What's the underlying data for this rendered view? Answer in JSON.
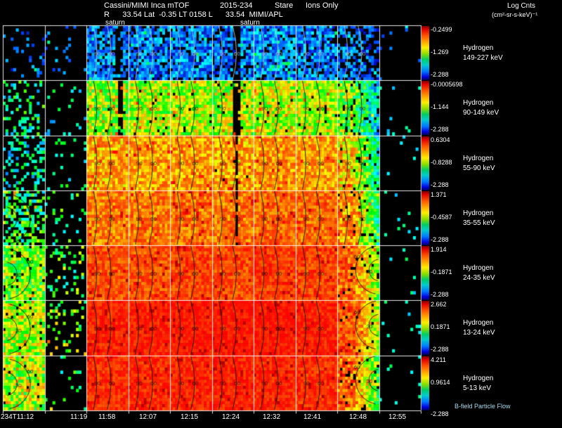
{
  "header": {
    "instrument": "Cassini/MIMI Inca mTOF",
    "date": "2015-234",
    "mode": "Stare",
    "species_filter": "Ions Only",
    "line2": "R      33.54 Lat  -0.35 LT 0158 L      33.54  MIMI/APL",
    "log_label": "Log Cnts",
    "log_units": "(cm²-sr-s-keV)⁻¹"
  },
  "saturn_marker": "saturn",
  "footer_note": "B-field Particle Flow",
  "chart_data": {
    "type": "heatmap",
    "title": "Cassini/MIMI Inca mTOF 2015-234 Stare Ions Only",
    "colorbar_units": "Log Cnts (cm²-sr-s-keV)⁻¹",
    "time_axis": {
      "labels": [
        "234T11:12",
        "11:19",
        "11:58",
        "12:07",
        "12:15",
        "12:24",
        "12:32",
        "12:41",
        "12:48",
        "12:55"
      ]
    },
    "contour_sets": {
      "ctr": [
        "90",
        "60"
      ],
      "lft": [
        "30",
        "60"
      ],
      "rgt": [
        "30",
        "60"
      ]
    },
    "rows": [
      {
        "species": "Hydrogen",
        "energy": "149-227 keV",
        "cbar": {
          "top": "-0.2499",
          "mid": "-1.269",
          "bot": "-2.288"
        },
        "cells": [
          {
            "c": 0.12,
            "v": 0.12,
            "s": 0.1
          },
          {
            "c": 0.05,
            "v": 0.12,
            "s": 0.08
          },
          {
            "c": 0.8,
            "v": 0.14,
            "s": 0.13,
            "b": [
              0.8,
              0.18
            ],
            "k": "ctr"
          },
          {
            "c": 0.8,
            "v": 0.14,
            "s": 0.13,
            "k": "ctr"
          },
          {
            "c": 0.82,
            "v": 0.15,
            "s": 0.13,
            "k": "ctr"
          },
          {
            "c": 0.8,
            "v": 0.14,
            "s": 0.13,
            "b": [
              0.58,
              0.16
            ],
            "k": "ctr"
          },
          {
            "c": 0.85,
            "v": 0.16,
            "s": 0.14,
            "k": "ctr"
          },
          {
            "c": 0.8,
            "v": 0.14,
            "s": 0.13,
            "k": "ctr"
          },
          {
            "c": 0.55,
            "v": 0.13,
            "s": 0.12,
            "vr": 0.08,
            "k": "ctr"
          },
          {
            "c": 0.02,
            "v": 0.1,
            "s": 0.05
          }
        ]
      },
      {
        "species": "Hydrogen",
        "energy": "90-149 keV",
        "cbar": {
          "top": "-0.0005698",
          "mid": "-1.144",
          "bot": "-2.288"
        },
        "cells": [
          {
            "c": 0.25,
            "v": 0.35,
            "s": 0.18
          },
          {
            "c": 0.06,
            "v": 0.3,
            "s": 0.15
          },
          {
            "c": 0.97,
            "v": 0.52,
            "s": 0.16,
            "b": [
              0.8,
              0.12
            ],
            "k": "ctr"
          },
          {
            "c": 0.97,
            "v": 0.55,
            "s": 0.15,
            "k": "ctr"
          },
          {
            "c": 0.97,
            "v": 0.56,
            "s": 0.15,
            "k": "ctr"
          },
          {
            "c": 0.95,
            "v": 0.55,
            "s": 0.16,
            "b": [
              0.6,
              0.15
            ],
            "k": "ctr"
          },
          {
            "c": 0.97,
            "v": 0.57,
            "s": 0.15,
            "k": "ctr"
          },
          {
            "c": 0.97,
            "v": 0.55,
            "s": 0.15,
            "k": "ctr"
          },
          {
            "c": 0.88,
            "v": 0.5,
            "s": 0.18,
            "vr": 0.25,
            "k": "ctr"
          },
          {
            "c": 0.02,
            "v": 0.3,
            "s": 0.1
          }
        ]
      },
      {
        "species": "Hydrogen",
        "energy": "55-90 keV",
        "cbar": {
          "top": "0.6304",
          "mid": "-0.8288",
          "bot": "-2.288"
        },
        "cells": [
          {
            "c": 0.3,
            "v": 0.3,
            "s": 0.16
          },
          {
            "c": 0.08,
            "v": 0.35,
            "s": 0.15
          },
          {
            "c": 1,
            "v": 0.68,
            "s": 0.12,
            "k": "ctr"
          },
          {
            "c": 1,
            "v": 0.7,
            "s": 0.11,
            "k": "ctr"
          },
          {
            "c": 1,
            "v": 0.7,
            "s": 0.11,
            "k": "ctr"
          },
          {
            "c": 0.98,
            "v": 0.69,
            "s": 0.12,
            "b": [
              0.6,
              0.1
            ],
            "k": "ctr"
          },
          {
            "c": 1,
            "v": 0.71,
            "s": 0.11,
            "k": "ctr"
          },
          {
            "c": 1,
            "v": 0.7,
            "s": 0.11,
            "k": "ctr"
          },
          {
            "c": 0.92,
            "v": 0.66,
            "s": 0.15,
            "vr": 0.3,
            "k": "ctr"
          },
          {
            "c": 0.02,
            "v": 0.3,
            "s": 0.1
          }
        ]
      },
      {
        "species": "Hydrogen",
        "energy": "35-55 keV",
        "cbar": {
          "top": "1.371",
          "mid": "-0.4587",
          "bot": "-2.288"
        },
        "cells": [
          {
            "c": 0.45,
            "v": 0.4,
            "s": 0.2,
            "k": "lft"
          },
          {
            "c": 0.1,
            "v": 0.4,
            "s": 0.15
          },
          {
            "c": 1,
            "v": 0.74,
            "s": 0.1,
            "k": "ctr"
          },
          {
            "c": 1,
            "v": 0.75,
            "s": 0.1,
            "k": "ctr"
          },
          {
            "c": 1,
            "v": 0.76,
            "s": 0.1,
            "k": "ctr"
          },
          {
            "c": 1,
            "v": 0.75,
            "s": 0.1,
            "b": [
              0.6,
              0.08
            ],
            "k": "ctr"
          },
          {
            "c": 1,
            "v": 0.77,
            "s": 0.09,
            "k": "ctr"
          },
          {
            "c": 1,
            "v": 0.76,
            "s": 0.09,
            "k": "ctr"
          },
          {
            "c": 0.95,
            "v": 0.72,
            "s": 0.14,
            "vr": 0.35,
            "k": "ctr"
          },
          {
            "c": 0.02,
            "v": 0.3,
            "s": 0.1
          }
        ]
      },
      {
        "species": "Hydrogen",
        "energy": "24-35 keV",
        "cbar": {
          "top": "1.914",
          "mid": "-0.1871",
          "bot": "-2.288"
        },
        "cells": [
          {
            "c": 0.92,
            "v": 0.5,
            "s": 0.16,
            "k": "lft"
          },
          {
            "c": 0.15,
            "v": 0.45,
            "s": 0.18
          },
          {
            "c": 1,
            "v": 0.8,
            "s": 0.08,
            "k": "ctr"
          },
          {
            "c": 1,
            "v": 0.8,
            "s": 0.08,
            "k": "ctr"
          },
          {
            "c": 1,
            "v": 0.82,
            "s": 0.08,
            "k": "ctr"
          },
          {
            "c": 1,
            "v": 0.81,
            "s": 0.08,
            "k": "ctr"
          },
          {
            "c": 1,
            "v": 0.83,
            "s": 0.07,
            "k": "ctr"
          },
          {
            "c": 1,
            "v": 0.82,
            "s": 0.08,
            "k": "ctr"
          },
          {
            "c": 0.95,
            "v": 0.78,
            "s": 0.12,
            "vr": 0.5,
            "k": "rgt"
          },
          {
            "c": 0.02,
            "v": 0.3,
            "s": 0.1
          }
        ]
      },
      {
        "species": "Hydrogen",
        "energy": "13-24 keV",
        "cbar": {
          "top": "2.662",
          "mid": "0.1871",
          "bot": "-2.288"
        },
        "cells": [
          {
            "c": 0.95,
            "v": 0.55,
            "s": 0.15,
            "k": "lft"
          },
          {
            "c": 0.12,
            "v": 0.5,
            "s": 0.18
          },
          {
            "c": 1,
            "v": 0.86,
            "s": 0.06,
            "k": "ctr"
          },
          {
            "c": 1,
            "v": 0.87,
            "s": 0.06,
            "k": "ctr"
          },
          {
            "c": 1,
            "v": 0.88,
            "s": 0.05,
            "k": "ctr"
          },
          {
            "c": 1,
            "v": 0.88,
            "s": 0.05,
            "k": "ctr"
          },
          {
            "c": 1,
            "v": 0.88,
            "s": 0.05,
            "k": "ctr"
          },
          {
            "c": 1,
            "v": 0.87,
            "s": 0.06,
            "k": "ctr"
          },
          {
            "c": 0.95,
            "v": 0.8,
            "s": 0.1,
            "vr": 0.55,
            "k": "rgt"
          },
          {
            "c": 0.02,
            "v": 0.3,
            "s": 0.1
          }
        ]
      },
      {
        "species": "Hydrogen",
        "energy": "5-13 keV",
        "cbar": {
          "top": "4.211",
          "mid": "0.9614",
          "bot": "-2.288"
        },
        "cells": [
          {
            "c": 0.95,
            "v": 0.55,
            "s": 0.18,
            "k": "lft"
          },
          {
            "c": 0.05,
            "v": 0.4,
            "s": 0.15
          },
          {
            "c": 1,
            "v": 0.85,
            "s": 0.07,
            "k": "ctr"
          },
          {
            "c": 1,
            "v": 0.86,
            "s": 0.07,
            "k": "ctr"
          },
          {
            "c": 1,
            "v": 0.86,
            "s": 0.06,
            "k": "ctr"
          },
          {
            "c": 1,
            "v": 0.87,
            "s": 0.06,
            "k": "ctr"
          },
          {
            "c": 1,
            "v": 0.86,
            "s": 0.06,
            "k": "ctr"
          },
          {
            "c": 1,
            "v": 0.85,
            "s": 0.07,
            "k": "ctr"
          },
          {
            "c": 0.9,
            "v": 0.78,
            "s": 0.14,
            "vr": 0.45,
            "k": "rgt"
          },
          {
            "c": 0.02,
            "v": 0.3,
            "s": 0.1
          }
        ]
      }
    ]
  }
}
